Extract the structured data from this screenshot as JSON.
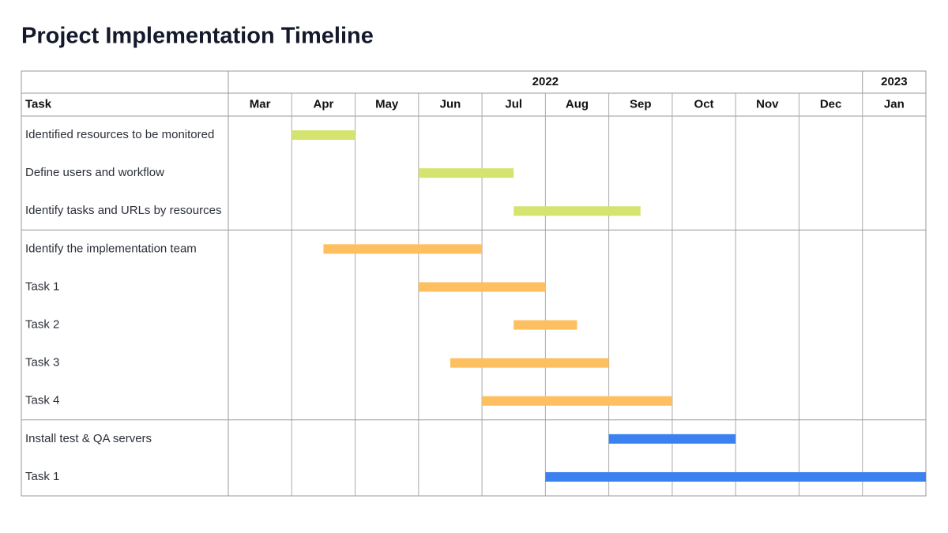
{
  "chart_data": {
    "type": "gantt",
    "title": "Project Implementation Timeline",
    "task_header": "Task",
    "years": [
      {
        "label": "2022",
        "categories": [
          "Mar",
          "Apr",
          "May",
          "Jun",
          "Jul",
          "Aug",
          "Sep",
          "Oct",
          "Nov",
          "Dec"
        ]
      },
      {
        "label": "2023",
        "categories": [
          "Jan"
        ]
      }
    ],
    "xlim": [
      0,
      11
    ],
    "groups": [
      {
        "color": "#d4e46f",
        "tasks": [
          {
            "name": "Identified resources to be monitored",
            "start": 1,
            "end": 2
          },
          {
            "name": "Define users and workflow",
            "start": 3,
            "end": 4.5
          },
          {
            "name": "Identify tasks and URLs by resources",
            "start": 4.5,
            "end": 6.5
          }
        ]
      },
      {
        "color": "#fdbf5f",
        "tasks": [
          {
            "name": "Identify the implementation team",
            "start": 1.5,
            "end": 4
          },
          {
            "name": "Task 1",
            "start": 3,
            "end": 5
          },
          {
            "name": "Task 2",
            "start": 4.5,
            "end": 5.5
          },
          {
            "name": "Task 3",
            "start": 3.5,
            "end": 6
          },
          {
            "name": "Task 4",
            "start": 4,
            "end": 7
          }
        ]
      },
      {
        "color": "#3b82f0",
        "tasks": [
          {
            "name": "Install test & QA servers",
            "start": 6,
            "end": 8
          },
          {
            "name": "Task 1",
            "start": 5,
            "end": 11
          }
        ]
      }
    ]
  }
}
